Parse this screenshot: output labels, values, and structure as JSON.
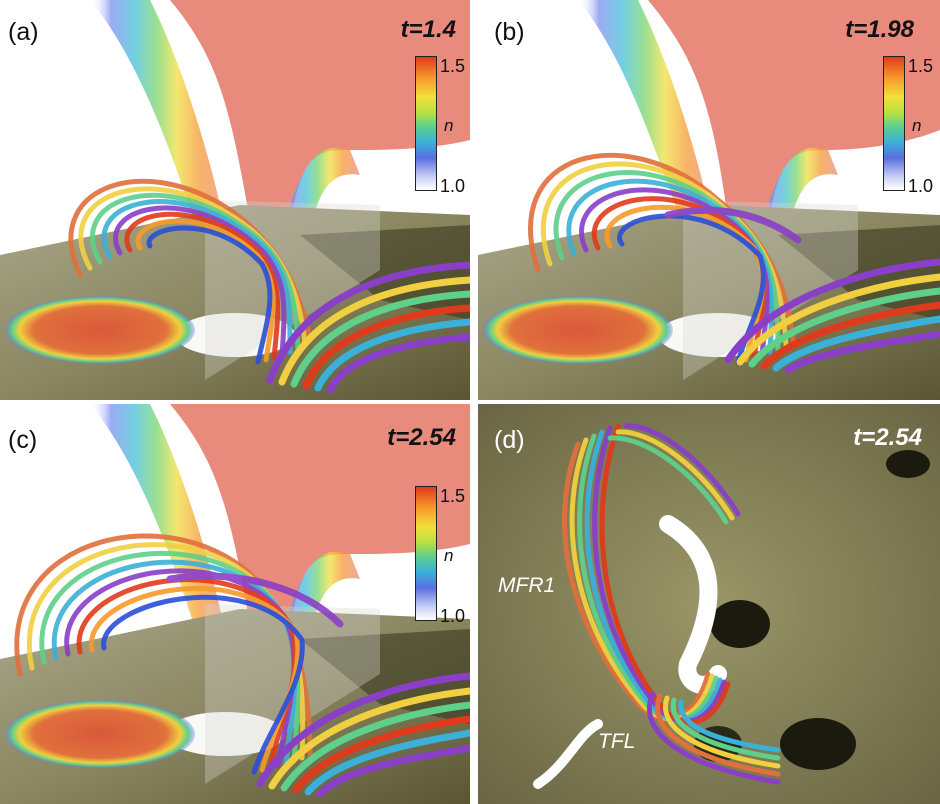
{
  "panels": [
    {
      "label": "(a)",
      "time": "t=1.4"
    },
    {
      "label": "(b)",
      "time": "t=1.98"
    },
    {
      "label": "(c)",
      "time": "t=2.54"
    },
    {
      "label": "(d)",
      "time": "t=2.54"
    }
  ],
  "colorbar": {
    "max": "1.5",
    "min": "1.0",
    "variable": "n"
  },
  "annotations": {
    "mfr": "MFR1",
    "tfl": "TFL"
  },
  "colors": {
    "density_high": "#e88a7c",
    "surface_olive": "#7a7650",
    "surface_dark": "#3a3820",
    "flare_white": "#ffffff"
  }
}
